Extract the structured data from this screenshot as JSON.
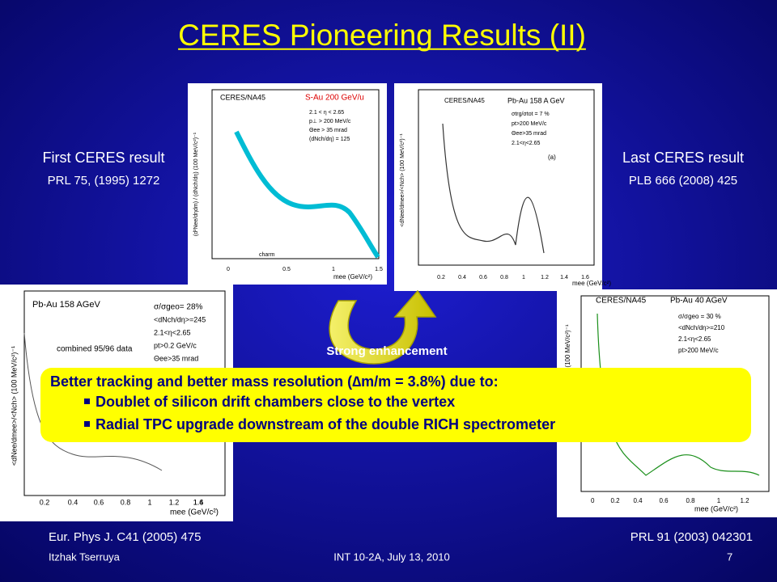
{
  "title": "CERES Pioneering Results (II)",
  "captions": {
    "first_result": "First CERES result",
    "first_ref": "PRL  75, (1995) 1272",
    "last_result": "Last CERES result",
    "last_ref": "PLB 666 (2008) 425",
    "left_ref": "Eur. Phys J. C41 (2005) 475",
    "right_ref": "PRL  91 (2003) 042301",
    "enhancement": "Strong enhancement"
  },
  "callout": {
    "heading": "Better tracking and better mass resolution (∆m/m = 3.8%) due to:",
    "bullets": [
      "Doublet of silicon drift chambers close to the vertex",
      "Radial TPC upgrade downstream of the double RICH spectrometer"
    ]
  },
  "plots": [
    {
      "labels": [
        "CERES/NA45",
        "S-Au 200 GeV/u",
        "2.1 < η < 2.65",
        "p⊥ > 200 MeV/c",
        "Θee > 35 mrad",
        "(dNch/dη) = 125",
        "charm",
        "mee (GeV/c²)",
        "(d²Nee/dηdm) / (dNch/dη) (100 MeV/c²)⁻¹",
        "0",
        "0.5",
        "1",
        "1.5"
      ]
    },
    {
      "labels": [
        "CERES/NA45",
        "Pb-Au 158 A GeV",
        "σtrg/σtot = 7 %",
        "pt>200 MeV/c",
        "Θee>35 mrad",
        "2.1<η<2.65",
        "(a)",
        "mee (GeV/c²)",
        "<dNee/dmee>/<Nch> (100 MeV/c²)⁻¹",
        "0.2",
        "0.4",
        "0.6",
        "0.8",
        "1",
        "1.2",
        "1.4",
        "1.6"
      ]
    },
    {
      "labels": [
        "Pb-Au 158 AGeV",
        "σ/σgeo= 28%",
        "<dNch/dη>=245",
        "2.1<η<2.65",
        "pt>0.2 GeV/c",
        "Θee>35 mrad",
        "combined 95/96 data",
        "mee (GeV/c²)",
        "<dNee/dmee>/<Nch> (100 MeV/c²)⁻¹",
        "0.2",
        "0.4",
        "0.6",
        "0.8",
        "1",
        "1.2",
        "1.4",
        "1.6"
      ]
    },
    {
      "labels": [
        "CERES/NA45",
        "Pb-Au 40 AGeV",
        "σ/σgeo = 30 %",
        "<dNch/dη>=210",
        "2.1<η<2.65",
        "pt>200 MeV/c",
        "mee (GeV/c²)",
        "(100 MeV/c²)⁻¹",
        "0",
        "0.2",
        "0.4",
        "0.6",
        "0.8",
        "1",
        "1.2"
      ]
    }
  ],
  "footer": {
    "author": "Itzhak Tserruya",
    "event": "INT 10-2A, July 13, 2010",
    "page": "7"
  }
}
